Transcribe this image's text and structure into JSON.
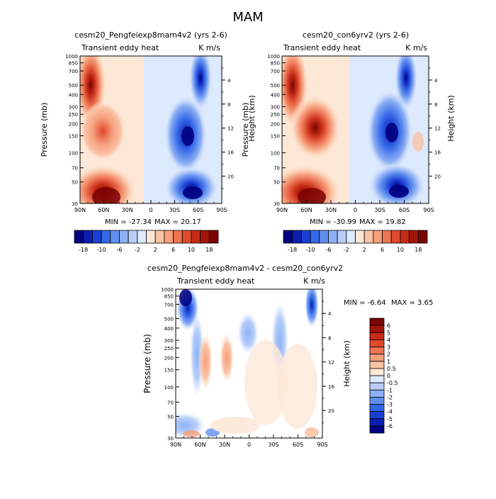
{
  "figure": {
    "title": "MAM"
  },
  "x_ticks": [
    "90N",
    "60N",
    "30N",
    "0",
    "30S",
    "60S",
    "90S"
  ],
  "pressure_ticks": [
    30,
    50,
    70,
    100,
    150,
    200,
    250,
    300,
    400,
    500,
    700,
    850,
    1000
  ],
  "height_ticks": [
    4,
    8,
    12,
    16,
    20
  ],
  "chart_data": [
    {
      "type": "heatmap",
      "title": "cesm20_Pengfeiexp8mam4v2 (yrs 2-6)",
      "left_label": "Transient eddy heat",
      "right_label": "K m/s",
      "ylabel": "Pressure (mb)",
      "ylabel_right": "Height (km)",
      "xlim": [
        "90N",
        "90S"
      ],
      "ylim": [
        1000,
        30
      ],
      "y_scale": "log",
      "min_label": "MIN = -27.34",
      "max_label": "MAX =  20.17",
      "min": -27.34,
      "max": 20.17,
      "colorbar_levels": [
        -18,
        -10,
        -6,
        -2,
        2,
        6,
        10,
        18
      ],
      "colorbar_ticks": [
        "-18",
        "-10",
        "-6",
        "-2",
        "2",
        "6",
        "10",
        "18"
      ]
    },
    {
      "type": "heatmap",
      "title": "cesm20_con6yrv2 (yrs 2-6)",
      "left_label": "Transient eddy heat",
      "right_label": "K m/s",
      "ylabel": "Pressure (mb)",
      "ylabel_right": "Height (km)",
      "xlim": [
        "90N",
        "90S"
      ],
      "ylim": [
        1000,
        30
      ],
      "y_scale": "log",
      "min_label": "MIN = -30.99",
      "max_label": "MAX =  19.82",
      "min": -30.99,
      "max": 19.82,
      "colorbar_levels": [
        -18,
        -10,
        -6,
        -2,
        2,
        6,
        10,
        18
      ],
      "colorbar_ticks": [
        "-18",
        "-10",
        "-6",
        "-2",
        "2",
        "6",
        "10",
        "18"
      ]
    },
    {
      "type": "heatmap",
      "title": "cesm20_Pengfeiexp8mam4v2 - cesm20_con6yrv2",
      "left_label": "Transient eddy heat",
      "right_label": "K m/s",
      "ylabel": "Pressure (mb)",
      "ylabel_right": "Height (km)",
      "xlim": [
        "90N",
        "90S"
      ],
      "ylim": [
        1000,
        30
      ],
      "y_scale": "log",
      "min_label": "MIN =  -6.64",
      "max_label": "MAX =   3.65",
      "min": -6.64,
      "max": 3.65,
      "colorbar_levels": [
        6,
        5,
        4,
        3,
        2,
        1,
        0.5,
        0,
        -0.5,
        -1,
        -2,
        -3,
        -4,
        -5,
        -6
      ],
      "colorbar_ticks": [
        "6",
        "5",
        "4",
        "3",
        "2",
        "1",
        "0.5",
        "0",
        "-0.5",
        "-1",
        "-2",
        "-3",
        "-4",
        "-5",
        "-6"
      ]
    }
  ],
  "palette": {
    "hcbar": [
      "#000080",
      "#0a1fae",
      "#1a3fd4",
      "#3568e8",
      "#5f8ef0",
      "#8db0f5",
      "#b9cffa",
      "#dde9fd",
      "#fde8d8",
      "#fac3a5",
      "#f59f7d",
      "#ee7553",
      "#e04a2c",
      "#c62b15",
      "#a31509",
      "#7a0403"
    ],
    "vcbar": [
      "#7a0403",
      "#a31509",
      "#c62b15",
      "#e04a2c",
      "#ee7553",
      "#f59f7d",
      "#fac3a5",
      "#fde8d8",
      "#dde9fd",
      "#b9cffa",
      "#8db0f5",
      "#5f8ef0",
      "#3568e8",
      "#1a3fd4",
      "#0a1fae",
      "#000080"
    ]
  }
}
